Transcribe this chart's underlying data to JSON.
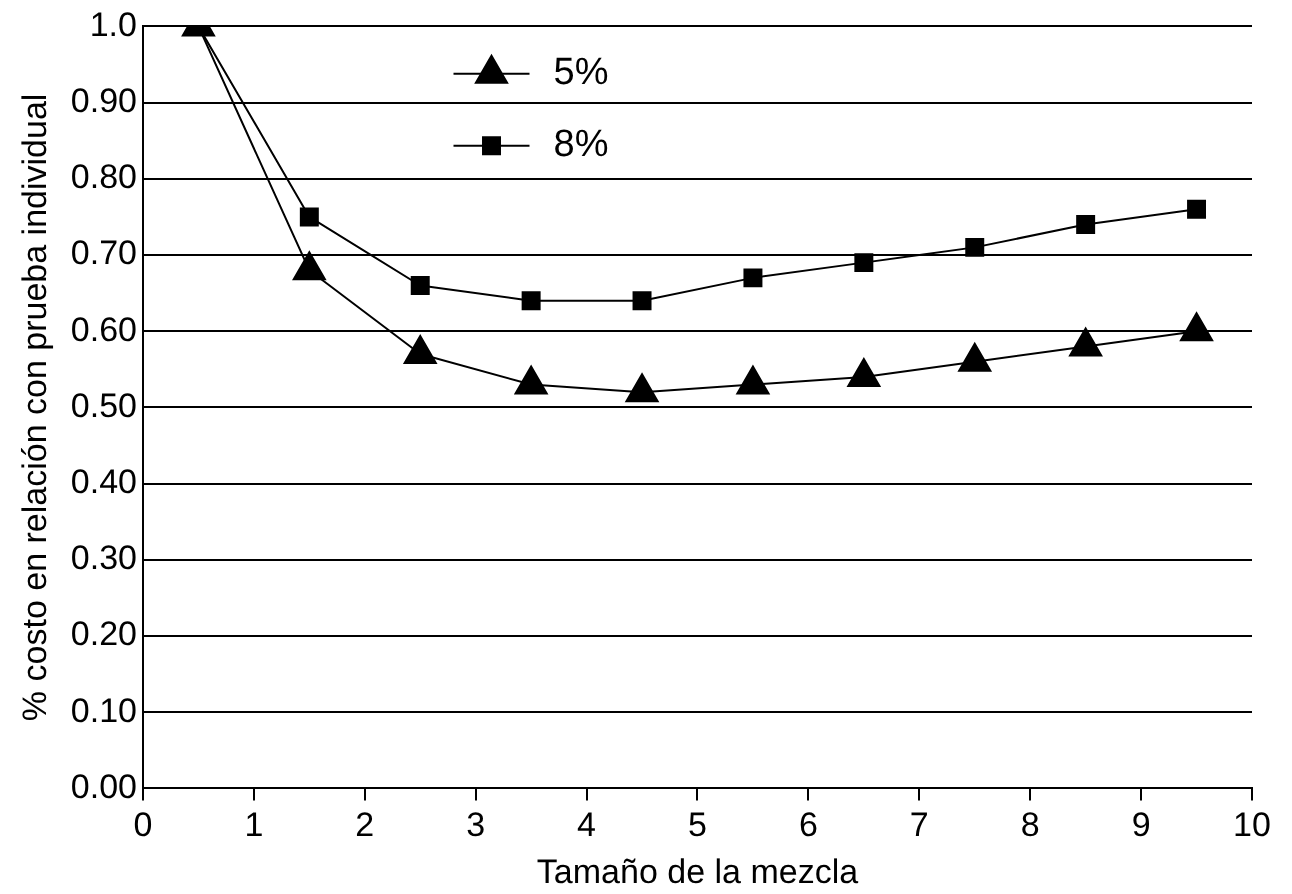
{
  "chart_data": {
    "type": "line",
    "xlabel": "Tamaño de la mezcla",
    "ylabel": "% costo en relación con prueba individual",
    "x": [
      0.5,
      1.5,
      2.5,
      3.5,
      4.5,
      5.5,
      6.5,
      7.5,
      8.5,
      9.5
    ],
    "series": [
      {
        "name": "5%",
        "color": "#000000",
        "marker": "triangle",
        "values": [
          1.0,
          0.68,
          0.57,
          0.53,
          0.52,
          0.53,
          0.54,
          0.56,
          0.58,
          0.6
        ]
      },
      {
        "name": "8%",
        "color": "#000000",
        "marker": "square",
        "values": [
          1.0,
          0.75,
          0.66,
          0.64,
          0.64,
          0.67,
          0.69,
          0.71,
          0.74,
          0.76
        ]
      }
    ],
    "xlim": [
      0,
      10
    ],
    "xticks": [
      0,
      1,
      2,
      3,
      4,
      5,
      6,
      7,
      8,
      9,
      10
    ],
    "ylim": [
      0,
      1
    ],
    "yticks": [
      {
        "value": 0,
        "label": "0.00"
      },
      {
        "value": 0.1,
        "label": "0.10"
      },
      {
        "value": 0.2,
        "label": "0.20"
      },
      {
        "value": 0.3,
        "label": "0.30"
      },
      {
        "value": 0.4,
        "label": "0.40"
      },
      {
        "value": 0.5,
        "label": "0.50"
      },
      {
        "value": 0.6,
        "label": "0.60"
      },
      {
        "value": 0.7,
        "label": "0.70"
      },
      {
        "value": 0.8,
        "label": "0.80"
      },
      {
        "value": 0.9,
        "label": "0.90"
      },
      {
        "value": 1,
        "label": "1.0"
      }
    ],
    "grid": "y",
    "legend": "top"
  }
}
